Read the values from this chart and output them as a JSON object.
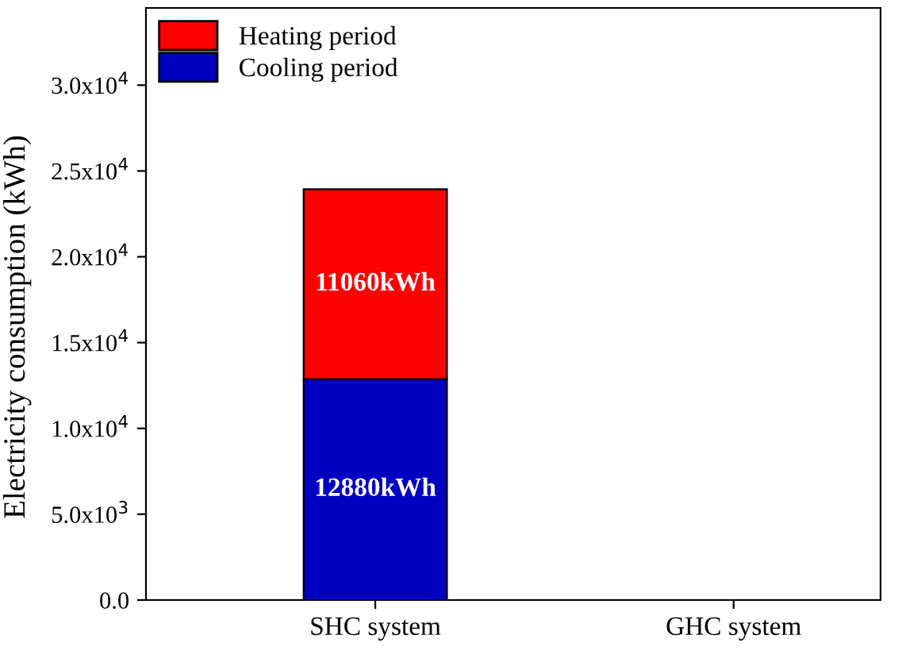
{
  "chart_data": {
    "type": "bar",
    "stacked": true,
    "ylabel": "Electricity consumption (kWh)",
    "categories": [
      "SHC system",
      "GHC system"
    ],
    "series": [
      {
        "name": "Cooling period",
        "color": "#0000c0",
        "values": [
          12880,
          null
        ],
        "value_labels": [
          "12880kWh",
          null
        ]
      },
      {
        "name": "Heating period",
        "color": "#ff0000",
        "values": [
          11060,
          null
        ],
        "value_labels": [
          "11060kWh",
          null
        ]
      }
    ],
    "ylim": [
      0,
      34500
    ],
    "yticks": [
      {
        "value": 0,
        "label": "0.0"
      },
      {
        "value": 5000,
        "label": "5.0x10$^{3}$"
      },
      {
        "value": 10000,
        "label": "1.0x10$^{4}$"
      },
      {
        "value": 15000,
        "label": "1.5x10$^{4}$"
      },
      {
        "value": 20000,
        "label": "2.0x10$^{4}$"
      },
      {
        "value": 25000,
        "label": "2.5x10$^{4}$"
      },
      {
        "value": 30000,
        "label": "3.0x10$^{4}$"
      }
    ],
    "legend": "top left",
    "grid": false
  }
}
